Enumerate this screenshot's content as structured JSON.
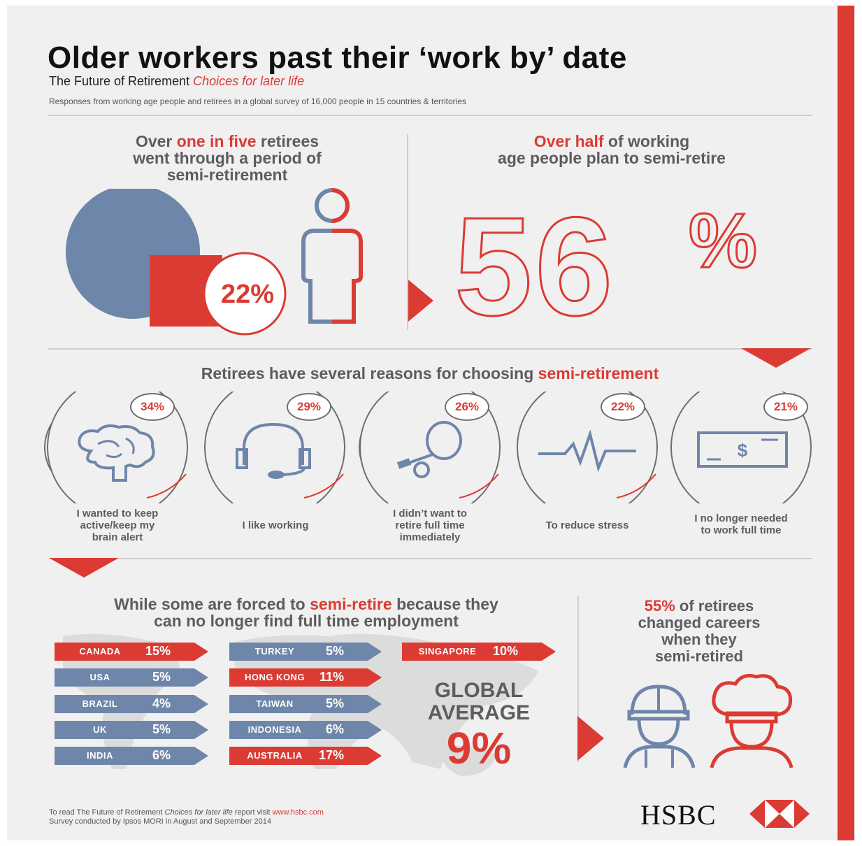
{
  "header": {
    "title": "Older workers past their ‘work by’ date",
    "subtitle_main": "The Future of Retirement",
    "subtitle_accent": "Choices for later life",
    "description": "Responses from working age people and retirees in a global survey of 16,000 people in 15 countries & territories"
  },
  "section1": {
    "left_headline_pre": "Over",
    "left_headline_accent": "one in five",
    "left_headline_post1": "retirees",
    "left_headline_line2": "went through a period of",
    "left_headline_line3": "semi-retirement",
    "pie_value": "22%",
    "pie_fraction": 0.22,
    "right_headline_accent": "Over half",
    "right_headline_post": "of working",
    "right_headline_line2": "age people plan to semi-retire",
    "big_number": "56",
    "big_percent": "%"
  },
  "section2": {
    "headline_pre": "Retirees have several reasons for choosing",
    "headline_accent": "semi-retirement",
    "reasons": [
      {
        "pct": "34%",
        "line1": "I wanted to keep",
        "line2": "active/keep my",
        "line3": "brain alert",
        "icon": "brain-icon"
      },
      {
        "pct": "29%",
        "line1": "I like working",
        "line2": "",
        "line3": "",
        "icon": "headset-icon"
      },
      {
        "pct": "26%",
        "line1": "I didn’t want to",
        "line2": "retire full time",
        "line3": "immediately",
        "icon": "tennis-racket-icon"
      },
      {
        "pct": "22%",
        "line1": "To reduce stress",
        "line2": "",
        "line3": "",
        "icon": "heartbeat-icon"
      },
      {
        "pct": "21%",
        "line1": "I no longer needed",
        "line2": "to work full time",
        "line3": "",
        "icon": "banknote-icon"
      }
    ]
  },
  "section3": {
    "headline_pre": "While some are forced to",
    "headline_accent": "semi-retire",
    "headline_post": "because they",
    "headline_line2": "can no longer find full time employment",
    "countries_col1": [
      {
        "name": "CANADA",
        "value": "15%",
        "color": "red"
      },
      {
        "name": "USA",
        "value": "5%",
        "color": "blue"
      },
      {
        "name": "BRAZIL",
        "value": "4%",
        "color": "blue"
      },
      {
        "name": "UK",
        "value": "5%",
        "color": "blue"
      },
      {
        "name": "INDIA",
        "value": "6%",
        "color": "blue"
      }
    ],
    "countries_col2": [
      {
        "name": "TURKEY",
        "value": "5%",
        "color": "blue"
      },
      {
        "name": "HONG KONG",
        "value": "11%",
        "color": "red"
      },
      {
        "name": "TAIWAN",
        "value": "5%",
        "color": "blue"
      },
      {
        "name": "INDONESIA",
        "value": "6%",
        "color": "blue"
      },
      {
        "name": "AUSTRALIA",
        "value": "17%",
        "color": "red"
      }
    ],
    "singapore": {
      "name": "SINGAPORE",
      "value": "10%"
    },
    "global_line1": "GLOBAL",
    "global_line2": "AVERAGE",
    "global_value": "9%",
    "careers_accent": "55%",
    "careers_post": "of retirees",
    "careers_line2": "changed careers",
    "careers_line3": "when they",
    "careers_line4": "semi-retired"
  },
  "footer": {
    "line1_pre": "To read The Future of Retirement",
    "line1_italic": "Choices for later life",
    "line1_mid": "report visit",
    "line1_link": "www.hsbc.com",
    "line2": "Survey conducted by Ipsos MORI in August and September 2014",
    "brand": "HSBC"
  },
  "colors": {
    "accent_red": "#db3b33",
    "accent_blue": "#6e86aa",
    "background": "#f0f0f0"
  }
}
